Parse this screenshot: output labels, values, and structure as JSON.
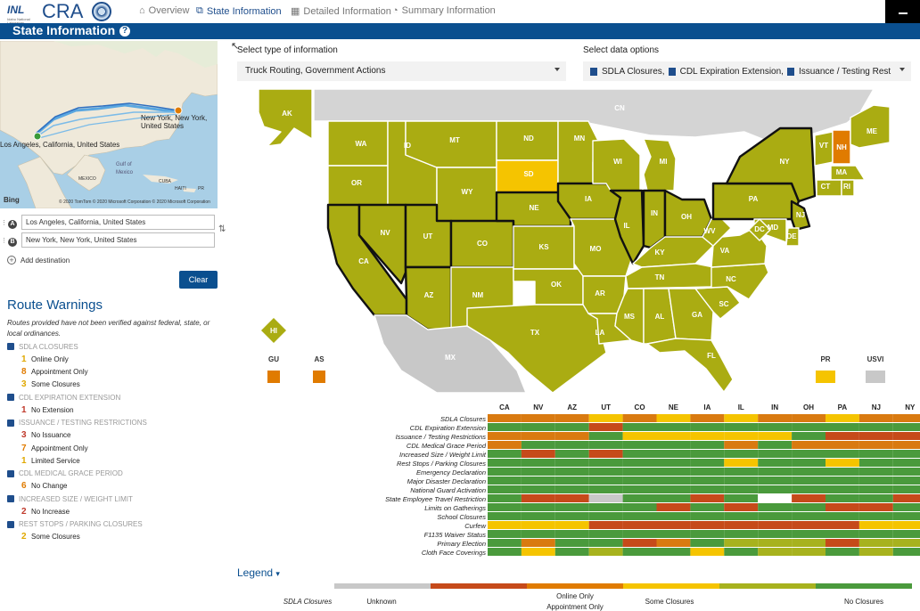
{
  "brand": {
    "org": "INL",
    "org_sub": "Idaho National Laboratory",
    "app": "CRA"
  },
  "nav": [
    {
      "label": "Overview",
      "icon": "home-icon",
      "active": false
    },
    {
      "label": "State Information",
      "icon": "sitemap-icon",
      "active": true
    },
    {
      "label": "Detailed Information",
      "icon": "table-icon",
      "active": false
    },
    {
      "label": "Summary Information",
      "icon": "pie-icon",
      "active": false
    }
  ],
  "header": {
    "title": "State Information",
    "help": "?"
  },
  "minimap": {
    "labels": {
      "origin": "Los Angeles, California, United States",
      "destination": "New York, New York, United States",
      "gulf": "Gulf of Mexico",
      "mexico": "MEXICO",
      "cuba": "CUBA",
      "haiti": "HAITI",
      "pr": "PR",
      "bing": "Bing",
      "copyright": "© 2020 TomTom © 2020 Microsoft Corporation © 2020 Microsoft Corporation"
    },
    "pin_a": "A",
    "pin_b": "B"
  },
  "route": {
    "from": "Los Angeles, California, United States",
    "to": "New York, New York, United States",
    "add_destination": "Add destination",
    "clear": "Clear"
  },
  "warnings": {
    "title": "Route Warnings",
    "note": "Routes provided have not been verified against federal, state, or local ordinances.",
    "groups": [
      {
        "name": "SDLA CLOSURES",
        "icon": "sdla-icon",
        "items": [
          {
            "n": "1",
            "label": "Online Only",
            "color": "#e0a800"
          },
          {
            "n": "8",
            "label": "Appointment Only",
            "color": "#e07b00"
          },
          {
            "n": "3",
            "label": "Some Closures",
            "color": "#e0a800"
          }
        ]
      },
      {
        "name": "CDL EXPIRATION EXTENSION",
        "icon": "cdl-icon",
        "items": [
          {
            "n": "1",
            "label": "No Extension",
            "color": "#c0392b"
          }
        ]
      },
      {
        "name": "ISSUANCE / TESTING RESTRICTIONS",
        "icon": "id-card-icon",
        "items": [
          {
            "n": "3",
            "label": "No Issuance",
            "color": "#c0392b"
          },
          {
            "n": "7",
            "label": "Appointment Only",
            "color": "#e07b00"
          },
          {
            "n": "1",
            "label": "Limited Service",
            "color": "#e0a800"
          }
        ]
      },
      {
        "name": "CDL MEDICAL GRACE PERIOD",
        "icon": "medical-icon",
        "items": [
          {
            "n": "6",
            "label": "No Change",
            "color": "#e07b00"
          }
        ]
      },
      {
        "name": "INCREASED SIZE / WEIGHT LIMIT",
        "icon": "truck-icon",
        "items": [
          {
            "n": "2",
            "label": "No Increase",
            "color": "#c0392b"
          }
        ]
      },
      {
        "name": "REST STOPS / PARKING CLOSURES",
        "icon": "bed-icon",
        "items": [
          {
            "n": "2",
            "label": "Some Closures",
            "color": "#e0a800"
          }
        ]
      }
    ]
  },
  "controls": {
    "type_label": "Select type of information",
    "type_value": "Truck Routing, Government Actions",
    "data_label": "Select data options",
    "data_values": [
      "SDLA Closures,",
      "CDL Expiration Extension,",
      "Issuance / Testing Rest"
    ]
  },
  "map": {
    "colors": {
      "olive": "#aaac12",
      "yellow": "#f5c400",
      "orange": "#e07b00",
      "gray": "#c8c8c8",
      "cn": "#d4d4d4"
    },
    "labels": {
      "AK": "AK",
      "CN": "CN",
      "MX": "MX",
      "HI": "HI",
      "WA": "WA",
      "OR": "OR",
      "CA": "CA",
      "ID": "ID",
      "NV": "NV",
      "MT": "MT",
      "WY": "WY",
      "UT": "UT",
      "AZ": "AZ",
      "CO": "CO",
      "NM": "NM",
      "ND": "ND",
      "SD": "SD",
      "NE": "NE",
      "KS": "KS",
      "OK": "OK",
      "TX": "TX",
      "MN": "MN",
      "IA": "IA",
      "MO": "MO",
      "AR": "AR",
      "LA": "LA",
      "WI": "WI",
      "IL": "IL",
      "MI": "MI",
      "IN": "IN",
      "OH": "OH",
      "KY": "KY",
      "TN": "TN",
      "MS": "MS",
      "AL": "AL",
      "GA": "GA",
      "FL": "FL",
      "SC": "SC",
      "NC": "NC",
      "VA": "VA",
      "WV": "WV",
      "PA": "PA",
      "NY": "NY",
      "VT": "VT",
      "NH": "NH",
      "ME": "ME",
      "MA": "MA",
      "CT": "CT",
      "RI": "RI",
      "NJ": "NJ",
      "DE": "DE",
      "MD": "MD",
      "DC": "DC"
    },
    "territories": [
      {
        "label": "GU",
        "color": "#e07b00"
      },
      {
        "label": "AS",
        "color": "#e07b00"
      },
      {
        "label": "PR",
        "color": "#f5c400"
      },
      {
        "label": "USVI",
        "color": "#c8c8c8"
      }
    ]
  },
  "heatmap": {
    "columns": [
      "CA",
      "NV",
      "AZ",
      "UT",
      "CO",
      "NE",
      "IA",
      "IL",
      "IN",
      "OH",
      "PA",
      "NJ",
      "NY"
    ],
    "rows": [
      "SDLA Closures",
      "CDL Expiration Extension",
      "Issuance / Testing Restrictions",
      "CDL Medical Grace Period",
      "Increased Size / Weight Limit",
      "Rest Stops / Parking Closures",
      "Emergency Declaration",
      "Major Disaster Declaration",
      "National Guard Activation",
      "State Employee Travel Restriction",
      "Limits on Gatherings",
      "School Closures",
      "Curfew",
      "F1135 Waiver Status",
      "Primary Election",
      "Cloth Face Coverings"
    ],
    "palette": {
      "G": "#4a9a3c",
      "O": "#d97a10",
      "R": "#c64a1a",
      "Y": "#f5c400",
      "L": "#a7b21e",
      "S": "#c8c8c8",
      "W": "#ffffff"
    },
    "cells": [
      [
        "O",
        "O",
        "O",
        "Y",
        "O",
        "Y",
        "O",
        "Y",
        "O",
        "O",
        "Y",
        "O",
        "O"
      ],
      [
        "G",
        "G",
        "G",
        "R",
        "G",
        "G",
        "G",
        "G",
        "G",
        "G",
        "G",
        "G",
        "G"
      ],
      [
        "O",
        "O",
        "O",
        "G",
        "Y",
        "Y",
        "Y",
        "Y",
        "Y",
        "G",
        "R",
        "R",
        "R"
      ],
      [
        "O",
        "G",
        "G",
        "G",
        "G",
        "G",
        "G",
        "O",
        "G",
        "O",
        "O",
        "O",
        "O"
      ],
      [
        "G",
        "R",
        "G",
        "R",
        "G",
        "G",
        "G",
        "G",
        "G",
        "G",
        "G",
        "G",
        "G"
      ],
      [
        "G",
        "G",
        "G",
        "G",
        "G",
        "G",
        "G",
        "Y",
        "G",
        "G",
        "Y",
        "G",
        "G"
      ],
      [
        "G",
        "G",
        "G",
        "G",
        "G",
        "G",
        "G",
        "G",
        "G",
        "G",
        "G",
        "G",
        "G"
      ],
      [
        "G",
        "G",
        "G",
        "G",
        "G",
        "G",
        "G",
        "G",
        "G",
        "G",
        "G",
        "G",
        "G"
      ],
      [
        "G",
        "G",
        "G",
        "G",
        "G",
        "G",
        "G",
        "G",
        "G",
        "G",
        "G",
        "G",
        "G"
      ],
      [
        "G",
        "R",
        "R",
        "S",
        "G",
        "G",
        "R",
        "G",
        "W",
        "R",
        "G",
        "G",
        "R"
      ],
      [
        "G",
        "G",
        "G",
        "G",
        "G",
        "R",
        "G",
        "R",
        "G",
        "G",
        "R",
        "R",
        "G"
      ],
      [
        "G",
        "G",
        "G",
        "G",
        "G",
        "G",
        "G",
        "G",
        "G",
        "G",
        "G",
        "G",
        "G"
      ],
      [
        "Y",
        "Y",
        "Y",
        "R",
        "R",
        "R",
        "R",
        "R",
        "R",
        "R",
        "R",
        "Y",
        "Y"
      ],
      [
        "G",
        "G",
        "G",
        "G",
        "G",
        "G",
        "G",
        "G",
        "G",
        "G",
        "G",
        "G",
        "G"
      ],
      [
        "G",
        "O",
        "G",
        "G",
        "R",
        "O",
        "G",
        "L",
        "L",
        "L",
        "R",
        "L",
        "L"
      ],
      [
        "G",
        "Y",
        "G",
        "L",
        "G",
        "G",
        "Y",
        "G",
        "L",
        "L",
        "G",
        "L",
        "G"
      ]
    ]
  },
  "legend": {
    "title": "Legend",
    "row_label": "SDLA Closures",
    "segments": [
      {
        "color": "#c8c8c8"
      },
      {
        "color": "#c64a1a"
      },
      {
        "color": "#e07b00"
      },
      {
        "color": "#f5c400"
      },
      {
        "color": "#a7b21e"
      },
      {
        "color": "#4a9a3c"
      }
    ],
    "labels": {
      "unknown": "Unknown",
      "online": "Online Only",
      "appt": "Appointment Only",
      "some": "Some Closures",
      "none": "No Closures"
    }
  }
}
